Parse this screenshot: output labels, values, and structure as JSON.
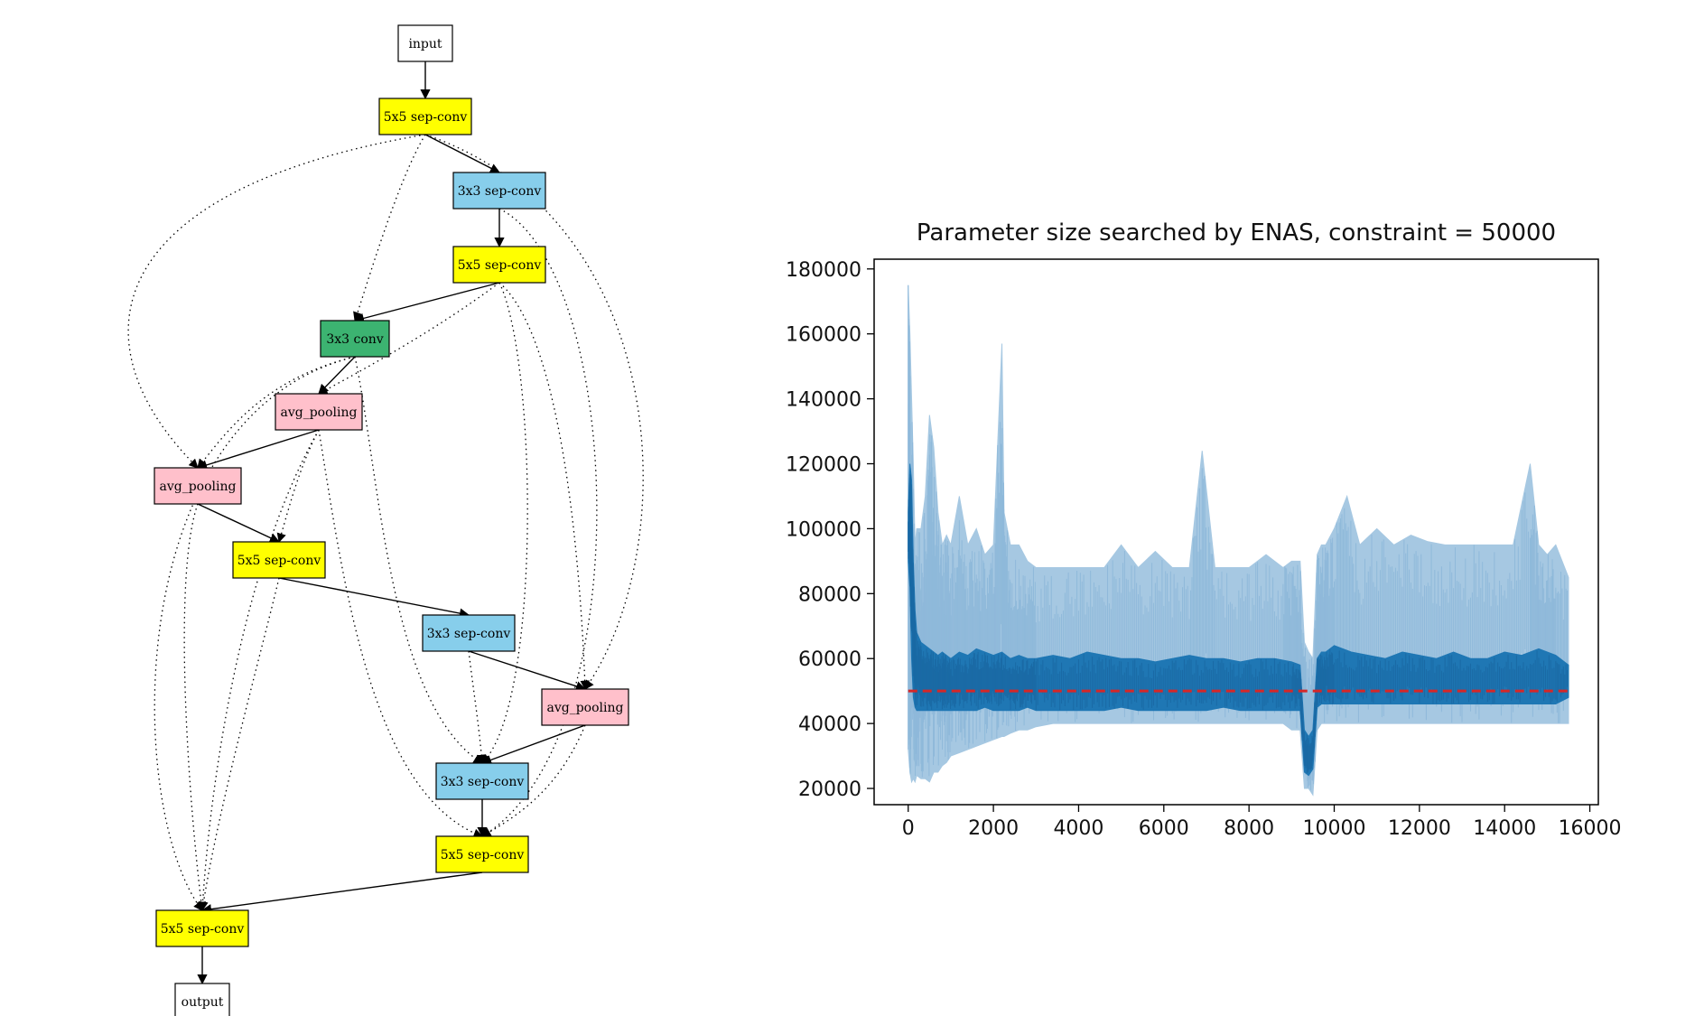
{
  "graph": {
    "nodes": [
      {
        "id": "input",
        "label": "input",
        "kind": "io",
        "color": "#ffffff"
      },
      {
        "id": "n1",
        "label": "5x5 sep-conv",
        "kind": "op",
        "color": "#ffff00"
      },
      {
        "id": "n2",
        "label": "3x3 sep-conv",
        "kind": "op",
        "color": "#87ceeb"
      },
      {
        "id": "n3",
        "label": "5x5 sep-conv",
        "kind": "op",
        "color": "#ffff00"
      },
      {
        "id": "n4",
        "label": "3x3 conv",
        "kind": "op",
        "color": "#3cb371"
      },
      {
        "id": "n5",
        "label": "avg_pooling",
        "kind": "op",
        "color": "#ffc0cb"
      },
      {
        "id": "n6",
        "label": "avg_pooling",
        "kind": "op",
        "color": "#ffc0cb"
      },
      {
        "id": "n7",
        "label": "5x5 sep-conv",
        "kind": "op",
        "color": "#ffff00"
      },
      {
        "id": "n8",
        "label": "3x3 sep-conv",
        "kind": "op",
        "color": "#87ceeb"
      },
      {
        "id": "n9",
        "label": "avg_pooling",
        "kind": "op",
        "color": "#ffc0cb"
      },
      {
        "id": "n10",
        "label": "3x3 sep-conv",
        "kind": "op",
        "color": "#87ceeb"
      },
      {
        "id": "n11",
        "label": "5x5 sep-conv",
        "kind": "op",
        "color": "#ffff00"
      },
      {
        "id": "n12",
        "label": "5x5 sep-conv",
        "kind": "op",
        "color": "#ffff00"
      },
      {
        "id": "output",
        "label": "output",
        "kind": "io",
        "color": "#ffffff"
      }
    ],
    "edges": [
      {
        "from": "input",
        "to": "n1",
        "style": "solid"
      },
      {
        "from": "n1",
        "to": "n2",
        "style": "solid"
      },
      {
        "from": "n2",
        "to": "n3",
        "style": "solid"
      },
      {
        "from": "n3",
        "to": "n4",
        "style": "solid"
      },
      {
        "from": "n4",
        "to": "n5",
        "style": "solid"
      },
      {
        "from": "n5",
        "to": "n6",
        "style": "solid"
      },
      {
        "from": "n6",
        "to": "n7",
        "style": "solid"
      },
      {
        "from": "n7",
        "to": "n8",
        "style": "solid"
      },
      {
        "from": "n8",
        "to": "n9",
        "style": "solid"
      },
      {
        "from": "n9",
        "to": "n10",
        "style": "solid"
      },
      {
        "from": "n10",
        "to": "n11",
        "style": "solid"
      },
      {
        "from": "n11",
        "to": "n12",
        "style": "solid"
      },
      {
        "from": "n12",
        "to": "output",
        "style": "solid"
      },
      {
        "from": "n1",
        "to": "n4",
        "style": "dotted"
      },
      {
        "from": "n1",
        "to": "n6",
        "style": "dotted"
      },
      {
        "from": "n1",
        "to": "n9",
        "style": "dotted"
      },
      {
        "from": "n2",
        "to": "n11",
        "style": "dotted"
      },
      {
        "from": "n3",
        "to": "n5",
        "style": "dotted"
      },
      {
        "from": "n3",
        "to": "n9",
        "style": "dotted"
      },
      {
        "from": "n3",
        "to": "n10",
        "style": "dotted"
      },
      {
        "from": "n4",
        "to": "n6",
        "style": "dotted"
      },
      {
        "from": "n4",
        "to": "n10",
        "style": "dotted"
      },
      {
        "from": "n4",
        "to": "n12",
        "style": "dotted"
      },
      {
        "from": "n5",
        "to": "n7",
        "style": "dotted"
      },
      {
        "from": "n5",
        "to": "n11",
        "style": "dotted"
      },
      {
        "from": "n5",
        "to": "n12",
        "style": "dotted"
      },
      {
        "from": "n6",
        "to": "n12",
        "style": "dotted"
      },
      {
        "from": "n7",
        "to": "n12",
        "style": "dotted"
      },
      {
        "from": "n8",
        "to": "n10",
        "style": "dotted"
      },
      {
        "from": "n9",
        "to": "n11",
        "style": "dotted"
      }
    ]
  },
  "chart_data": {
    "type": "line",
    "title": "Parameter size searched by ENAS, constraint = 50000",
    "xlabel": "",
    "ylabel": "",
    "xlim": [
      -800,
      16200
    ],
    "ylim": [
      15000,
      183000
    ],
    "xticks": [
      0,
      2000,
      4000,
      6000,
      8000,
      10000,
      12000,
      14000,
      16000
    ],
    "yticks": [
      20000,
      40000,
      60000,
      80000,
      100000,
      120000,
      140000,
      160000,
      180000
    ],
    "constraint": 50000,
    "constraint_color": "#d62728",
    "series": [
      {
        "style": "raw",
        "color": "#a6c8e2",
        "x": [
          0,
          40,
          80,
          120,
          160,
          200,
          300,
          400,
          500,
          600,
          700,
          800,
          900,
          1000,
          1200,
          1400,
          1600,
          1800,
          2000,
          2200,
          2250,
          2400,
          2600,
          2800,
          3000,
          3400,
          3800,
          4200,
          4600,
          5000,
          5400,
          5800,
          6200,
          6600,
          6900,
          7200,
          7600,
          8000,
          8400,
          8800,
          9000,
          9200,
          9300,
          9400,
          9500,
          9600,
          9700,
          9800,
          10000,
          10300,
          10600,
          11000,
          11400,
          11800,
          12200,
          12600,
          13000,
          13400,
          13800,
          14200,
          14600,
          14800,
          15000,
          15200,
          15500
        ],
        "upper": [
          175000,
          160000,
          140000,
          120000,
          95000,
          100000,
          100000,
          110000,
          135000,
          125000,
          105000,
          95000,
          98000,
          95000,
          110000,
          95000,
          100000,
          92000,
          95000,
          157000,
          105000,
          95000,
          95000,
          90000,
          88000,
          88000,
          88000,
          88000,
          88000,
          95000,
          88000,
          93000,
          88000,
          88000,
          124000,
          88000,
          88000,
          88000,
          92000,
          88000,
          90000,
          90000,
          65000,
          62000,
          60000,
          92000,
          95000,
          95000,
          100000,
          110000,
          95000,
          100000,
          95000,
          98000,
          96000,
          95000,
          95000,
          95000,
          95000,
          95000,
          120000,
          95000,
          92000,
          95000,
          85000
        ],
        "lower": [
          32000,
          25000,
          22000,
          23000,
          22000,
          24000,
          23000,
          23000,
          22000,
          25000,
          25000,
          27000,
          28000,
          30000,
          31000,
          32000,
          33000,
          34000,
          35000,
          36000,
          36000,
          37000,
          38000,
          38000,
          39000,
          40000,
          40000,
          40000,
          40000,
          40000,
          40000,
          40000,
          40000,
          40000,
          40000,
          40000,
          40000,
          40000,
          40000,
          40000,
          38000,
          38000,
          20000,
          20000,
          18000,
          38000,
          40000,
          40000,
          40000,
          40000,
          40000,
          40000,
          40000,
          40000,
          40000,
          40000,
          40000,
          40000,
          40000,
          40000,
          40000,
          40000,
          40000,
          40000,
          40000
        ]
      },
      {
        "style": "smoothed",
        "color": "#1f77b4",
        "x": [
          0,
          40,
          80,
          120,
          160,
          200,
          300,
          400,
          500,
          600,
          700,
          800,
          900,
          1000,
          1200,
          1400,
          1600,
          1800,
          2000,
          2200,
          2400,
          2600,
          2800,
          3000,
          3400,
          3800,
          4200,
          4600,
          5000,
          5400,
          5800,
          6200,
          6600,
          7000,
          7400,
          7800,
          8200,
          8600,
          9000,
          9200,
          9300,
          9400,
          9500,
          9600,
          9700,
          9800,
          10000,
          10400,
          10800,
          11200,
          11600,
          12000,
          12400,
          12800,
          13200,
          13600,
          14000,
          14400,
          14800,
          15200,
          15500
        ],
        "upper": [
          105000,
          120000,
          115000,
          90000,
          75000,
          68000,
          65000,
          64000,
          63000,
          62000,
          61000,
          62000,
          61000,
          60000,
          62000,
          61000,
          63000,
          62000,
          61000,
          62000,
          60000,
          61000,
          60000,
          60000,
          61000,
          60000,
          62000,
          61000,
          60000,
          60000,
          59000,
          60000,
          61000,
          60000,
          60000,
          59000,
          60000,
          60000,
          59000,
          58000,
          38000,
          36000,
          38000,
          60000,
          62000,
          62000,
          64000,
          62000,
          61000,
          60000,
          62000,
          61000,
          60000,
          62000,
          60000,
          60000,
          62000,
          61000,
          63000,
          61000,
          58000
        ],
        "lower": [
          90000,
          82000,
          60000,
          48000,
          45000,
          44000,
          44000,
          44000,
          44000,
          44000,
          44000,
          44000,
          44000,
          44000,
          44000,
          44000,
          44000,
          45000,
          44000,
          44000,
          44000,
          44000,
          45000,
          44000,
          44000,
          44000,
          44000,
          44000,
          45000,
          44000,
          44000,
          44000,
          44000,
          44000,
          45000,
          44000,
          44000,
          44000,
          44000,
          44000,
          25000,
          24000,
          26000,
          45000,
          46000,
          46000,
          46000,
          46000,
          46000,
          46000,
          46000,
          46000,
          46000,
          46000,
          46000,
          46000,
          46000,
          46000,
          46000,
          46000,
          48000
        ]
      }
    ]
  }
}
